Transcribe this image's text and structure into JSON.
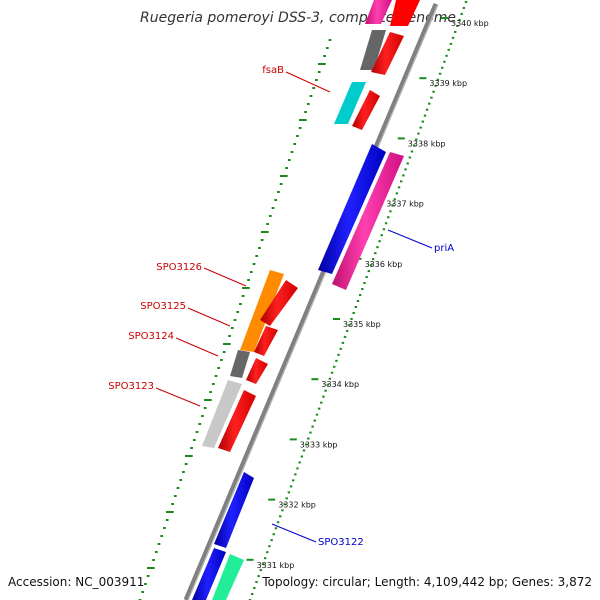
{
  "title": "Ruegeria pomeroyi DSS-3, complete genome",
  "accession": "Accession: NC_003911",
  "summary": "Topology: circular; Length: 4,109,442 bp; Genes: 3,872",
  "ticks": [
    "3340 kbp",
    "3339 kbp",
    "3338 kbp",
    "3337 kbp",
    "3336 kbp",
    "3335 kbp",
    "3334 kbp",
    "3333 kbp",
    "3332 kbp",
    "3331 kbp"
  ],
  "labels": {
    "fsaB": "fsaB",
    "priA": "priA",
    "spo3126": "SPO3126",
    "spo3125": "SPO3125",
    "spo3124": "SPO3124",
    "spo3123": "SPO3123",
    "spo3122": "SPO3122"
  },
  "colors": {
    "backbone": "#808080",
    "tick_mark": "#1a8a1a",
    "label_red": "#cc0000",
    "label_blue": "#0000cc",
    "gene_red": "#ff0000",
    "gene_blue": "#0000ee",
    "gene_magenta": "#ff1fa0",
    "gene_orange": "#ff8c00",
    "gene_cyan": "#00cccc",
    "gene_gray": "#666666",
    "gene_lightgray": "#c8c8c8",
    "gene_green": "#22ee99"
  }
}
